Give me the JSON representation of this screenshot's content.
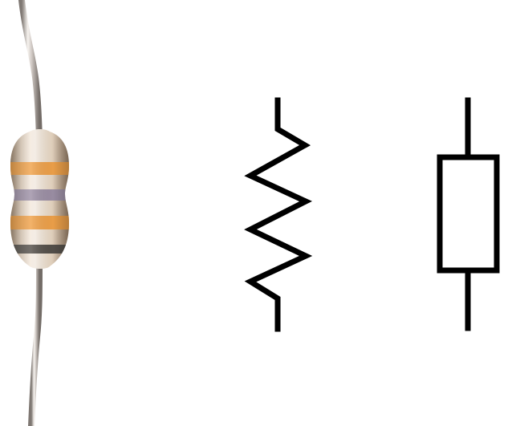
{
  "figure": {
    "background_color": "#ffffff",
    "panels": [
      {
        "id": "photo",
        "icon": "resistor-photo-icon",
        "bands": [
          {
            "color": "#f0a24a"
          },
          {
            "color": "#9d90a6"
          },
          {
            "color": "#f0a24a"
          },
          {
            "color": "#55504a"
          }
        ],
        "body_color": "#e9d9c5",
        "lead_color": "#c9c2bd"
      },
      {
        "id": "zigzag-symbol",
        "icon": "resistor-zigzag-symbol-icon",
        "stroke_color": "#000000"
      },
      {
        "id": "box-symbol",
        "icon": "resistor-box-symbol-icon",
        "stroke_color": "#000000"
      }
    ]
  }
}
